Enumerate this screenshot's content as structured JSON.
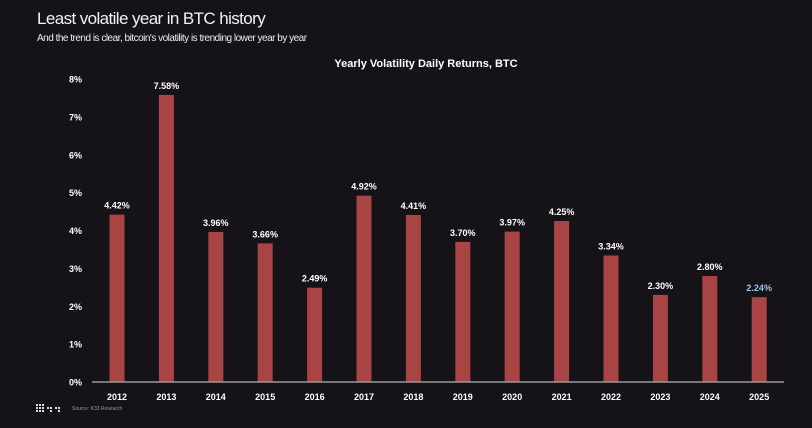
{
  "header": {
    "title": "Least volatile year in BTC history",
    "subtitle": "And the trend is clear, bitcoin's volatility is trending lower year by year"
  },
  "footer": {
    "source": "Source: K33 Research",
    "logo": "K33"
  },
  "colors": {
    "background": "#151218",
    "bar": "#a84444",
    "highlight_label": "#9ec3e6"
  },
  "chart_data": {
    "type": "bar",
    "title": "Yearly Volatility Daily Returns, BTC",
    "categories": [
      "2012",
      "2013",
      "2014",
      "2015",
      "2016",
      "2017",
      "2018",
      "2019",
      "2020",
      "2021",
      "2022",
      "2023",
      "2024",
      "2025"
    ],
    "values": [
      4.42,
      7.58,
      3.96,
      3.66,
      2.49,
      4.92,
      4.41,
      3.7,
      3.97,
      4.25,
      3.34,
      2.3,
      2.8,
      2.24
    ],
    "data_labels": [
      "4.42%",
      "7.58%",
      "3.96%",
      "3.66%",
      "2.49%",
      "4.92%",
      "4.41%",
      "3.70%",
      "3.97%",
      "4.25%",
      "3.34%",
      "2.30%",
      "2.80%",
      "2.24%"
    ],
    "yticks": [
      "0%",
      "1%",
      "2%",
      "3%",
      "4%",
      "5%",
      "6%",
      "7%",
      "8%"
    ],
    "ylim": [
      0,
      8
    ],
    "grid": false,
    "highlight": "2025"
  }
}
